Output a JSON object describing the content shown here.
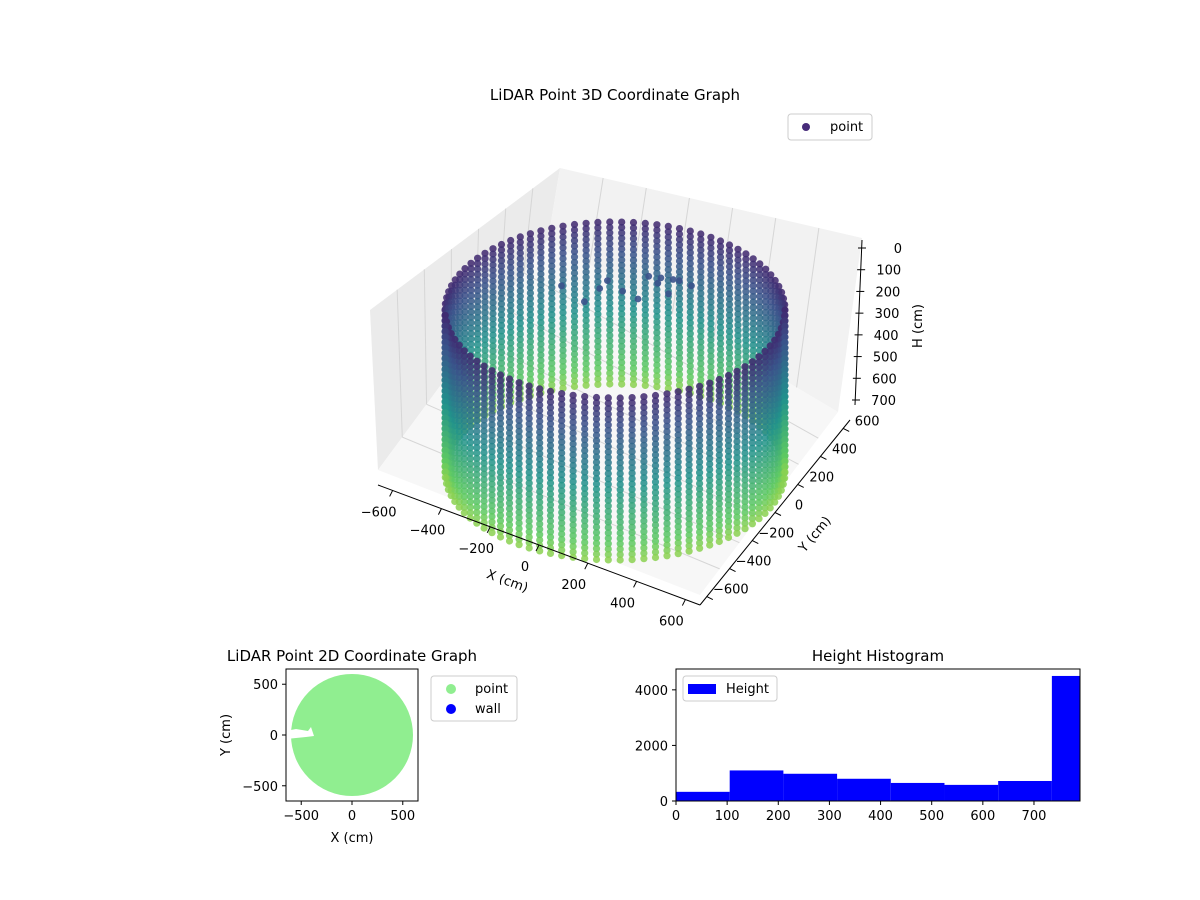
{
  "figure": {
    "background": "#ffffff"
  },
  "chart_data": [
    {
      "id": "chart3d",
      "type": "scatter",
      "title": "LiDAR Point 3D Coordinate Graph",
      "xlabel": "X (cm)",
      "ylabel": "Y (cm)",
      "zlabel": "H (cm)",
      "x_ticks": [
        "−600",
        "−400",
        "−200",
        "0",
        "200",
        "400",
        "600"
      ],
      "y_ticks": [
        "−600",
        "−400",
        "−200",
        "0",
        "200",
        "400",
        "600"
      ],
      "z_ticks": [
        "0",
        "100",
        "200",
        "300",
        "400",
        "500",
        "600",
        "700"
      ],
      "xlim": [
        -650,
        650
      ],
      "ylim": [
        -650,
        650
      ],
      "zlim": [
        0,
        780
      ],
      "z_inverted": true,
      "colormap": "viridis",
      "grid": true,
      "legend": {
        "position": "top-right",
        "entries": [
          {
            "label": "point",
            "color": "#472c7a"
          }
        ]
      },
      "shape": {
        "type": "cylinder",
        "radius": 620,
        "height_range": [
          0,
          780
        ]
      }
    },
    {
      "id": "chart2d",
      "type": "scatter",
      "title": "LiDAR Point 2D Coordinate Graph",
      "xlabel": "X (cm)",
      "ylabel": "Y (cm)",
      "x_ticks": [
        "−500",
        "0",
        "500"
      ],
      "y_ticks": [
        "500",
        "0",
        "−500"
      ],
      "xlim": [
        -650,
        650
      ],
      "ylim": [
        -650,
        650
      ],
      "legend": {
        "position": "right",
        "entries": [
          {
            "label": "point",
            "color": "#90ee90"
          },
          {
            "label": "wall",
            "color": "#0000ff"
          }
        ]
      },
      "shape": {
        "type": "disc",
        "radius": 600,
        "color": "#90ee90"
      }
    },
    {
      "id": "hist",
      "type": "bar",
      "title": "Height Histogram",
      "x_ticks": [
        "0",
        "100",
        "200",
        "300",
        "400",
        "500",
        "600",
        "700"
      ],
      "y_ticks": [
        "0",
        "2000",
        "4000"
      ],
      "xlim": [
        0,
        790
      ],
      "ylim": [
        0,
        4750
      ],
      "bar_color": "#0000ff",
      "legend": {
        "position": "top-left",
        "entries": [
          {
            "label": "Height",
            "color": "#0000ff"
          }
        ]
      },
      "bins": [
        {
          "start": 0,
          "end": 105,
          "count": 330
        },
        {
          "start": 105,
          "end": 210,
          "count": 1100
        },
        {
          "start": 210,
          "end": 315,
          "count": 980
        },
        {
          "start": 315,
          "end": 420,
          "count": 800
        },
        {
          "start": 420,
          "end": 525,
          "count": 650
        },
        {
          "start": 525,
          "end": 630,
          "count": 580
        },
        {
          "start": 630,
          "end": 735,
          "count": 720
        },
        {
          "start": 735,
          "end": 790,
          "count": 4500
        }
      ]
    }
  ]
}
